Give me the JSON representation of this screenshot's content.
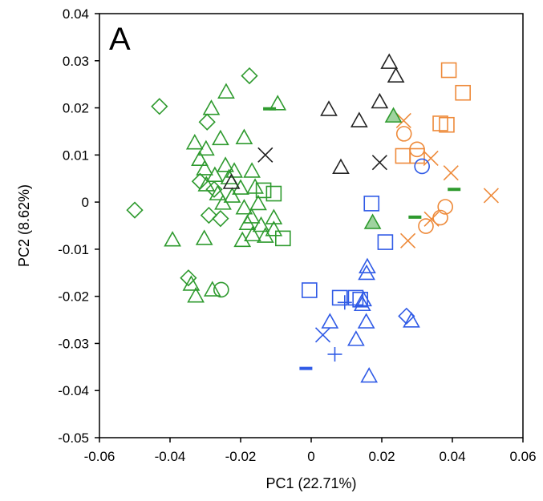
{
  "chart_data": {
    "type": "scatter",
    "panel_label": "A",
    "xlabel": "PC1 (22.71%)",
    "ylabel": "PC2 (8.62%)",
    "xlim": [
      -0.06,
      0.06
    ],
    "ylim": [
      -0.05,
      0.04
    ],
    "xticks": [
      -0.06,
      -0.04,
      -0.02,
      0,
      0.02,
      0.04,
      0.06
    ],
    "yticks": [
      -0.05,
      -0.04,
      -0.03,
      -0.02,
      -0.01,
      0,
      0.01,
      0.02,
      0.03,
      0.04
    ],
    "xtick_labels": [
      "-0.06",
      "-0.04",
      "-0.02",
      "0",
      "0.02",
      "0.04",
      "0.06"
    ],
    "ytick_labels": [
      "-0.05",
      "-0.04",
      "-0.03",
      "-0.02",
      "-0.01",
      "0",
      "0.01",
      "0.02",
      "0.03",
      "0.04"
    ],
    "grid": false,
    "colors": {
      "green": "#2e9a2e",
      "black": "#222222",
      "orange": "#ee8a3a",
      "blue": "#2f5ae6",
      "green_fill": "#9fd39f"
    },
    "groups": [
      {
        "color": "green",
        "marker": "triangle",
        "points": [
          [
            -0.0095,
            0.0208
          ],
          [
            -0.0241,
            0.0233
          ],
          [
            -0.019,
            0.0136
          ],
          [
            -0.0298,
            0.0112
          ],
          [
            -0.0257,
            0.0134
          ],
          [
            -0.0302,
            0.007
          ],
          [
            -0.0273,
            0.0056
          ],
          [
            -0.033,
            0.0125
          ],
          [
            -0.0316,
            0.009
          ],
          [
            -0.0297,
            0.0036
          ],
          [
            -0.0265,
            0.0017
          ],
          [
            -0.0243,
            0.0077
          ],
          [
            -0.0233,
            0.0051
          ],
          [
            -0.0218,
            0.0065
          ],
          [
            -0.025,
            -0.0003
          ],
          [
            -0.0224,
            0.0012
          ],
          [
            -0.02,
            0.0029
          ],
          [
            -0.019,
            -0.0013
          ],
          [
            -0.0168,
            0.0065
          ],
          [
            -0.0159,
            0.0031
          ],
          [
            -0.015,
            -0.0004
          ],
          [
            -0.0169,
            -0.0032
          ],
          [
            -0.0181,
            -0.0046
          ],
          [
            -0.0166,
            -0.007
          ],
          [
            -0.0142,
            -0.005
          ],
          [
            -0.013,
            -0.0073
          ],
          [
            -0.0106,
            -0.0034
          ],
          [
            -0.0106,
            -0.0059
          ],
          [
            -0.0195,
            -0.0082
          ],
          [
            -0.0303,
            -0.0078
          ],
          [
            -0.0393,
            -0.0081
          ],
          [
            -0.0327,
            -0.02
          ],
          [
            -0.0283,
            0.0198
          ],
          [
            -0.028,
            -0.0187
          ],
          [
            -0.034,
            -0.0175
          ]
        ]
      },
      {
        "color": "green",
        "marker": "diamond",
        "points": [
          [
            -0.0175,
            0.0268
          ],
          [
            -0.043,
            0.0203
          ],
          [
            -0.05,
            -0.0017
          ],
          [
            -0.0348,
            -0.0161
          ],
          [
            -0.0295,
            0.017
          ],
          [
            -0.0315,
            0.0044
          ],
          [
            -0.0275,
            0.0027
          ],
          [
            -0.0257,
            -0.0035
          ],
          [
            -0.029,
            -0.0028
          ]
        ]
      },
      {
        "color": "green",
        "marker": "square",
        "points": [
          [
            -0.0135,
            0.0025
          ],
          [
            -0.0106,
            0.0018
          ],
          [
            -0.008,
            -0.0077
          ]
        ]
      },
      {
        "color": "green",
        "marker": "circle",
        "points": [
          [
            -0.0255,
            -0.0186
          ]
        ]
      },
      {
        "color": "green",
        "marker": "dash",
        "points": [
          [
            -0.0118,
            0.0198
          ],
          [
            0.0294,
            -0.0032
          ],
          [
            0.0405,
            0.0027
          ]
        ]
      },
      {
        "color": "black",
        "marker": "triangle",
        "points": [
          [
            0.0221,
            0.0296
          ],
          [
            0.024,
            0.0267
          ],
          [
            0.0194,
            0.0212
          ],
          [
            0.005,
            0.0196
          ],
          [
            0.0136,
            0.0172
          ],
          [
            0.0084,
            0.0073
          ],
          [
            -0.0226,
            0.0041
          ]
        ]
      },
      {
        "color": "black",
        "marker": "cross",
        "points": [
          [
            -0.013,
            0.01
          ],
          [
            0.0194,
            0.0084
          ]
        ]
      },
      {
        "color": "orange",
        "marker": "square",
        "points": [
          [
            0.039,
            0.028
          ],
          [
            0.043,
            0.0232
          ],
          [
            0.0366,
            0.0167
          ],
          [
            0.0384,
            0.0164
          ],
          [
            0.026,
            0.0098
          ],
          [
            0.03,
            0.0098
          ]
        ]
      },
      {
        "color": "orange",
        "marker": "circle",
        "points": [
          [
            0.0263,
            0.0145
          ],
          [
            0.03,
            0.0112
          ],
          [
            0.038,
            -0.001
          ],
          [
            0.0325,
            -0.0051
          ],
          [
            0.0366,
            -0.0033
          ]
        ]
      },
      {
        "color": "orange",
        "marker": "cross",
        "points": [
          [
            0.0262,
            0.0173
          ],
          [
            0.0339,
            0.0093
          ],
          [
            0.0396,
            0.0062
          ],
          [
            0.051,
            0.0014
          ],
          [
            0.0274,
            -0.0082
          ],
          [
            0.0341,
            -0.0036
          ]
        ]
      },
      {
        "color": "blue",
        "marker": "square",
        "points": [
          [
            0.0171,
            -0.0003
          ],
          [
            0.021,
            -0.0085
          ],
          [
            -0.0005,
            -0.0187
          ],
          [
            0.0081,
            -0.0203
          ],
          [
            0.0126,
            -0.0203
          ],
          [
            0.0139,
            -0.0207
          ]
        ]
      },
      {
        "color": "blue",
        "marker": "triangle",
        "points": [
          [
            0.0159,
            -0.0138
          ],
          [
            0.0157,
            -0.0152
          ],
          [
            0.0148,
            -0.0208
          ],
          [
            0.0145,
            -0.0218
          ],
          [
            0.0053,
            -0.0255
          ],
          [
            0.0156,
            -0.0255
          ],
          [
            0.0127,
            -0.0292
          ],
          [
            0.0284,
            -0.0253
          ],
          [
            0.0164,
            -0.037
          ]
        ]
      },
      {
        "color": "blue",
        "marker": "diamond",
        "points": [
          [
            0.027,
            -0.0242
          ]
        ]
      },
      {
        "color": "blue",
        "marker": "circle",
        "points": [
          [
            0.0314,
            0.0076
          ]
        ]
      },
      {
        "color": "blue",
        "marker": "cross",
        "points": [
          [
            0.0033,
            -0.0282
          ]
        ]
      },
      {
        "color": "blue",
        "marker": "plus",
        "points": [
          [
            0.0067,
            -0.0323
          ],
          [
            0.0095,
            -0.0213
          ]
        ]
      },
      {
        "color": "blue",
        "marker": "dash",
        "points": [
          [
            -0.0015,
            -0.0353
          ]
        ]
      },
      {
        "color": "green",
        "marker": "triangle_filled",
        "points": [
          [
            0.0233,
            0.0182
          ],
          [
            0.0174,
            -0.0044
          ]
        ]
      }
    ]
  }
}
